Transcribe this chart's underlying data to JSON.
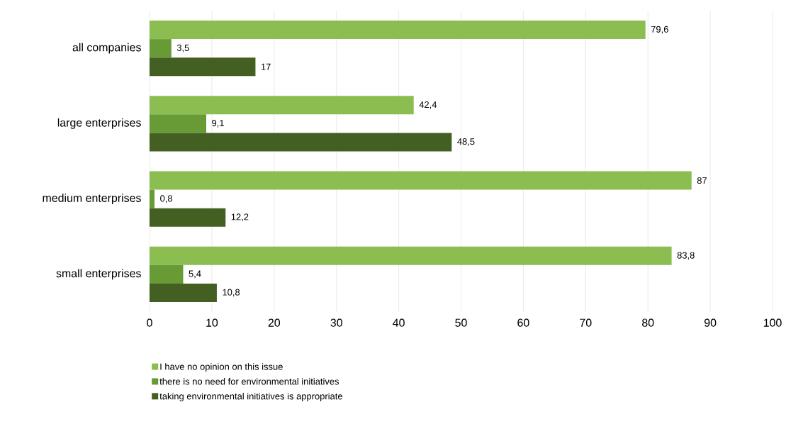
{
  "chart_data": {
    "type": "bar",
    "orientation": "horizontal",
    "categories": [
      "all companies",
      "large enterprises",
      "medium enterprises",
      "small enterprises"
    ],
    "series": [
      {
        "name": "I have no opinion on this issue",
        "color": "#8bbd50",
        "values": [
          79.6,
          42.4,
          87,
          83.8
        ],
        "value_labels": [
          "79,6",
          "42,4",
          "87",
          "83,8"
        ]
      },
      {
        "name": "there is no need for environmental initiatives",
        "color": "#689a35",
        "values": [
          3.5,
          9.1,
          0.8,
          5.4
        ],
        "value_labels": [
          "3,5",
          "9,1",
          "0,8",
          "5,4"
        ]
      },
      {
        "name": "taking environmental initiatives is appropriate",
        "color": "#435f21",
        "values": [
          17,
          48.5,
          12.2,
          10.8
        ],
        "value_labels": [
          "17",
          "48,5",
          "12,2",
          "10,8"
        ]
      }
    ],
    "xlim": [
      0,
      100
    ],
    "xticks": [
      0,
      10,
      20,
      30,
      40,
      50,
      60,
      70,
      80,
      90,
      100
    ],
    "grid": "x",
    "legend": "bottom"
  }
}
